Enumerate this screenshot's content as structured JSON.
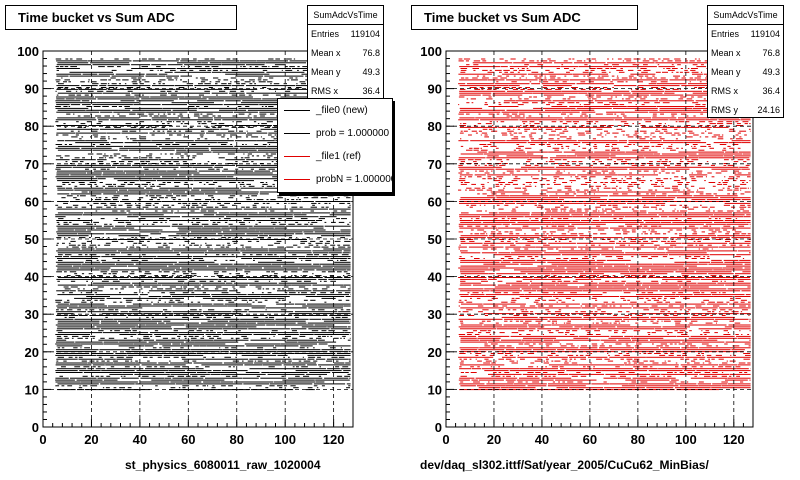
{
  "panels": [
    {
      "id": "left",
      "title": "Time bucket vs Sum ADC",
      "color": "#000000",
      "xlabel": "st_physics_6080011_raw_1020004",
      "stats": {
        "name": "SumAdcVsTime",
        "rows": [
          {
            "label": "Entries",
            "value": "119104"
          },
          {
            "label": "Mean x",
            "value": "76.8"
          },
          {
            "label": "Mean y",
            "value": "49.3"
          },
          {
            "label": "RMS x",
            "value": "36.4"
          }
        ]
      }
    },
    {
      "id": "right",
      "title": "Time bucket vs Sum ADC",
      "color": "#e00000",
      "xlabel": "dev/daq_sl302.ittf/Sat/year_2005/CuCu62_MinBias/",
      "stats": {
        "name": "SumAdcVsTime",
        "rows": [
          {
            "label": "Entries",
            "value": "119104"
          },
          {
            "label": "Mean x",
            "value": "76.8"
          },
          {
            "label": "Mean y",
            "value": "49.3"
          },
          {
            "label": "RMS x",
            "value": "36.4"
          },
          {
            "label": "RMS y",
            "value": "24.16"
          }
        ]
      }
    }
  ],
  "legend": [
    {
      "label": "_file0 (new)",
      "color": "#000000"
    },
    {
      "label": "prob = 1.000000",
      "color": "#000000"
    },
    {
      "label": "_file1 (ref)",
      "color": "#e00000"
    },
    {
      "label": "probN = 1.000000",
      "color": "#e00000"
    }
  ],
  "chart_data": [
    {
      "type": "scatter",
      "title": "Time bucket vs Sum ADC",
      "xlabel": "st_physics_6080011_raw_1020004",
      "ylabel": "",
      "xlim": [
        0,
        128
      ],
      "ylim": [
        0,
        100
      ],
      "xticks": [
        0,
        20,
        40,
        60,
        80,
        100,
        120
      ],
      "yticks": [
        0,
        10,
        20,
        30,
        40,
        50,
        60,
        70,
        80,
        90,
        100
      ],
      "grid": true,
      "series": [
        {
          "color": "#000000",
          "x_range": [
            5,
            127
          ],
          "y_range": [
            10,
            98
          ],
          "entries": 119104
        }
      ]
    },
    {
      "type": "scatter",
      "title": "Time bucket vs Sum ADC",
      "xlabel": "dev/daq_sl302.ittf/Sat/year_2005/CuCu62_MinBias/",
      "ylabel": "",
      "xlim": [
        0,
        128
      ],
      "ylim": [
        0,
        100
      ],
      "xticks": [
        0,
        20,
        40,
        60,
        80,
        100,
        120
      ],
      "yticks": [
        0,
        10,
        20,
        30,
        40,
        50,
        60,
        70,
        80,
        90,
        100
      ],
      "grid": true,
      "series": [
        {
          "color": "#e00000",
          "x_range": [
            5,
            127
          ],
          "y_range": [
            10,
            98
          ],
          "entries": 119104
        }
      ]
    }
  ]
}
